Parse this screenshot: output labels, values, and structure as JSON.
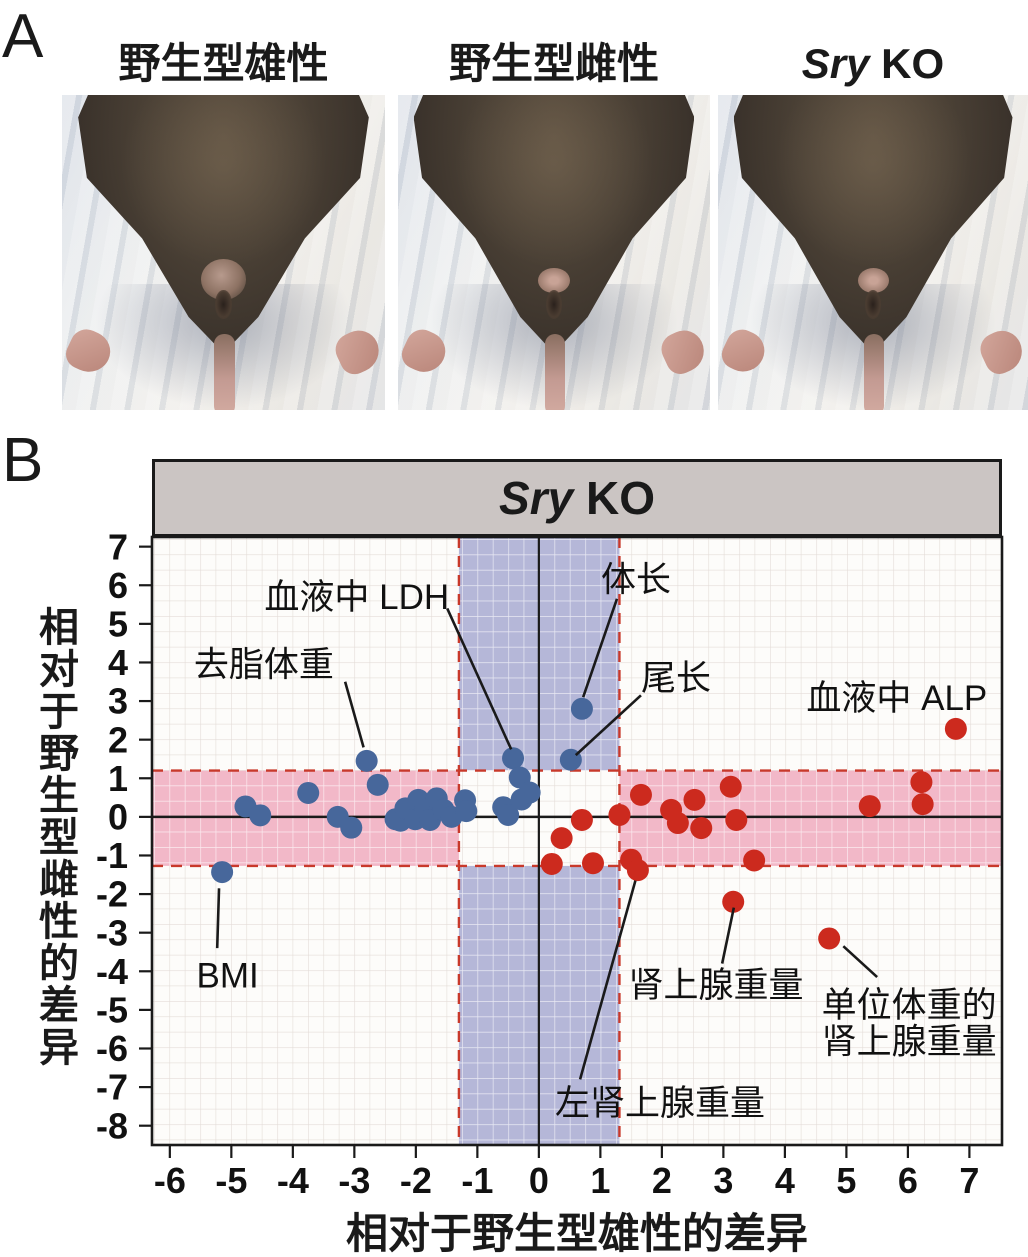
{
  "panel_a": {
    "label": "A",
    "photos": [
      {
        "italic": "",
        "text": "野生型雄性"
      },
      {
        "italic": "",
        "text": "野生型雌性"
      },
      {
        "italic": "Sry",
        "text": " KO"
      }
    ]
  },
  "panel_b": {
    "label": "B",
    "strip": {
      "italic": "Sry",
      "text": " KO"
    }
  },
  "chart_data": {
    "type": "scatter",
    "title": "Sry KO",
    "xlabel": "相对于野生型雄性的差异",
    "ylabel": "相对于野生型雌性的差异",
    "xlim": [
      -6.29,
      7.53
    ],
    "ylim": [
      -8.5,
      7.25
    ],
    "x_ticks": [
      -6,
      -5,
      -4,
      -3,
      -2,
      -1,
      0,
      1,
      2,
      3,
      4,
      5,
      6,
      7
    ],
    "y_ticks": [
      7,
      6,
      5,
      4,
      3,
      2,
      1,
      0,
      -1,
      -2,
      -3,
      -4,
      -5,
      -6,
      -7,
      -8
    ],
    "grid": true,
    "colors": {
      "background": "#fdfcfa",
      "grid_gray": "#ddd4cf",
      "band_vertical": "#b5b7d8",
      "band_horizontal": "#f2b8c8",
      "threshold_dash": "#c8392b",
      "zero_line": "#1a1a1a",
      "blue": "#47679b",
      "red": "#cc2a1e"
    },
    "bands": {
      "vertical_x": [
        -1.3,
        1.31
      ],
      "horizontal_y": [
        -1.27,
        1.2
      ]
    },
    "series": [
      {
        "name": "wild-type-male-side-blue",
        "color": "#47679b",
        "points": [
          [
            -5.15,
            -1.43
          ],
          [
            -4.77,
            0.27
          ],
          [
            -4.53,
            0.04
          ],
          [
            -3.75,
            0.62
          ],
          [
            -3.27,
            0.0
          ],
          [
            -3.05,
            -0.28
          ],
          [
            -2.8,
            1.45
          ],
          [
            -2.62,
            0.83
          ],
          [
            -2.33,
            -0.06
          ],
          [
            -2.25,
            -0.1
          ],
          [
            -2.17,
            0.22
          ],
          [
            -2.01,
            -0.06
          ],
          [
            -1.96,
            0.44
          ],
          [
            -1.85,
            0.18
          ],
          [
            -1.77,
            -0.08
          ],
          [
            -1.66,
            0.48
          ],
          [
            -1.55,
            0.18
          ],
          [
            -1.42,
            0.0
          ],
          [
            -1.2,
            0.43
          ],
          [
            -1.18,
            0.15
          ],
          [
            -0.58,
            0.25
          ],
          [
            -0.5,
            0.05
          ],
          [
            -0.42,
            1.52
          ],
          [
            -0.31,
            1.02
          ],
          [
            -0.28,
            0.45
          ],
          [
            -0.15,
            0.63
          ],
          [
            0.52,
            1.48
          ],
          [
            0.7,
            2.8
          ]
        ]
      },
      {
        "name": "wild-type-female-side-red",
        "color": "#cc2a1e",
        "points": [
          [
            0.21,
            -1.22
          ],
          [
            0.37,
            -0.55
          ],
          [
            0.7,
            -0.08
          ],
          [
            0.88,
            -1.2
          ],
          [
            1.31,
            0.05
          ],
          [
            1.5,
            -1.11
          ],
          [
            1.61,
            -1.38
          ],
          [
            1.66,
            0.57
          ],
          [
            2.15,
            0.18
          ],
          [
            2.26,
            -0.16
          ],
          [
            2.53,
            0.44
          ],
          [
            2.64,
            -0.29
          ],
          [
            3.12,
            0.78
          ],
          [
            3.21,
            -0.08
          ],
          [
            3.16,
            -2.2
          ],
          [
            3.5,
            -1.13
          ],
          [
            4.72,
            -3.15
          ],
          [
            5.38,
            0.28
          ],
          [
            6.22,
            0.9
          ],
          [
            6.24,
            0.33
          ],
          [
            6.78,
            2.28
          ]
        ]
      }
    ],
    "annotations": [
      {
        "text": "血液中 LDH",
        "label_at": [
          -2.96,
          5.7
        ],
        "line": [
          [
            -1.49,
            5.4
          ],
          [
            -0.45,
            1.75
          ]
        ]
      },
      {
        "text": "去脂体重",
        "label_at": [
          -4.47,
          3.95
        ],
        "line": [
          [
            -3.15,
            3.5
          ],
          [
            -2.85,
            1.8
          ]
        ]
      },
      {
        "text": "BMI",
        "label_at": [
          -5.06,
          -4.1
        ],
        "line": [
          [
            -5.2,
            -1.85
          ],
          [
            -5.23,
            -3.4
          ]
        ]
      },
      {
        "text": "体长",
        "label_at": [
          1.58,
          6.15
        ],
        "line": [
          [
            1.27,
            5.65
          ],
          [
            0.72,
            3.1
          ]
        ]
      },
      {
        "text": "尾长",
        "label_at": [
          2.23,
          3.6
        ],
        "line": [
          [
            1.66,
            3.15
          ],
          [
            0.6,
            1.6
          ]
        ]
      },
      {
        "text": "血液中 ALP",
        "label_at": [
          5.82,
          3.08
        ]
      },
      {
        "text": "肾上腺重量",
        "label_at": [
          2.88,
          -4.35
        ],
        "line": [
          [
            3.17,
            -2.35
          ],
          [
            2.98,
            -3.8
          ]
        ]
      },
      {
        "text": "单位体重的\n肾上腺重量",
        "label_at": [
          6.02,
          -5.45
        ],
        "line": [
          [
            4.95,
            -3.35
          ],
          [
            5.5,
            -4.15
          ]
        ]
      },
      {
        "text": "左肾上腺重量",
        "label_at": [
          1.97,
          -7.4
        ],
        "line": [
          [
            0.67,
            -6.8
          ],
          [
            1.57,
            -1.65
          ]
        ]
      }
    ]
  }
}
